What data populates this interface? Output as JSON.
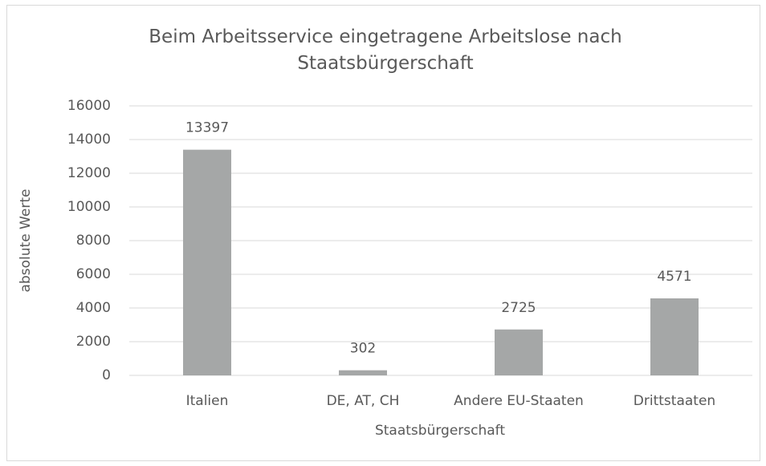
{
  "chart_data": {
    "type": "bar",
    "title": "Beim Arbeitsservice eingetragene Arbeitslose nach Staatsbürgerschaft",
    "x_label": "Staatsbürgerschaft",
    "y_label": "absolute Werte",
    "categories": [
      "Italien",
      "DE, AT, CH",
      "Andere EU-Staaten",
      "Drittstaaten"
    ],
    "values": [
      13397,
      302,
      2725,
      4571
    ],
    "color": "#a5a7a7",
    "ylim": [
      0,
      16000
    ],
    "yticks": [
      0,
      2000,
      4000,
      6000,
      8000,
      10000,
      12000,
      14000,
      16000
    ],
    "grid": true
  }
}
